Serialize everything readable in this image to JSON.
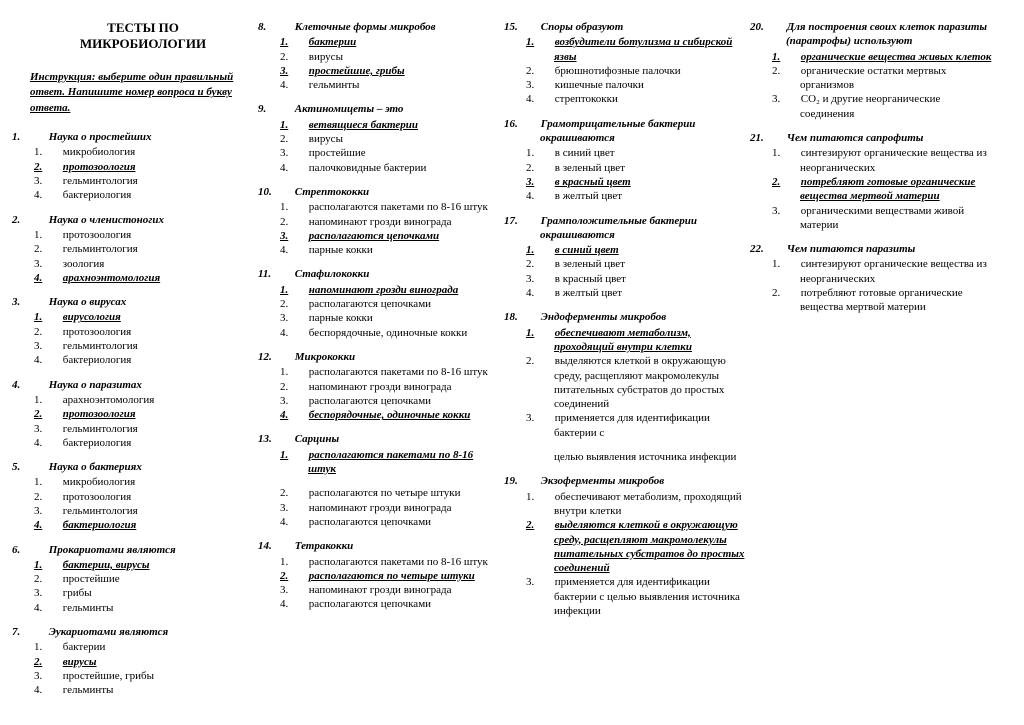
{
  "title_l1": "ТЕСТЫ ПО",
  "title_l2": "МИКРОБИОЛОГИИ",
  "instruction": "Инструкция: выберите один правильный ответ. Напишите номер вопроса и букву ответа.",
  "orphan18": [
    {
      "n": "2.",
      "t": "располагаются по четыре штуки"
    },
    {
      "n": "3.",
      "t": "напоминают грозди винограда"
    },
    {
      "n": "4.",
      "t": "располагаются цепочками"
    }
  ],
  "orphan18b": "целью выявления источника инфекции",
  "questions": [
    {
      "n": "1.",
      "q": "Наука о простейших",
      "o": [
        {
          "n": "1.",
          "t": "микробиология"
        },
        {
          "n": "2.",
          "t": "протозоология",
          "c": 1
        },
        {
          "n": "3.",
          "t": "гельминтология"
        },
        {
          "n": "4.",
          "t": "бактериология"
        }
      ]
    },
    {
      "n": "2.",
      "q": "Наука о членистоногих",
      "o": [
        {
          "n": "1.",
          "t": "протозоология"
        },
        {
          "n": "2.",
          "t": "гельминтология"
        },
        {
          "n": "3.",
          "t": "зоология"
        },
        {
          "n": "4.",
          "t": "арахноэнтомология",
          "c": 1
        }
      ]
    },
    {
      "n": "3.",
      "q": "Наука о вирусах",
      "o": [
        {
          "n": "1.",
          "t": "вирусология",
          "c": 1
        },
        {
          "n": "2.",
          "t": "протозоология"
        },
        {
          "n": "3.",
          "t": "гельминтология"
        },
        {
          "n": "4.",
          "t": "бактериология"
        }
      ]
    },
    {
      "n": "4.",
      "q": "Наука о паразитах",
      "o": [
        {
          "n": "1.",
          "t": "арахноэнтомология"
        },
        {
          "n": "2.",
          "t": "протозоология",
          "c": 1
        },
        {
          "n": "3.",
          "t": "гельминтология"
        },
        {
          "n": "4.",
          "t": "бактериология"
        }
      ]
    },
    {
      "n": "5.",
      "q": "Наука о бактериях",
      "o": [
        {
          "n": "1.",
          "t": "микробиология"
        },
        {
          "n": "2.",
          "t": "протозоология"
        },
        {
          "n": "3.",
          "t": "гельминтология"
        },
        {
          "n": "4.",
          "t": "бактериология",
          "c": 1
        }
      ]
    },
    {
      "n": "6.",
      "q": "Прокариотами являются",
      "o": [
        {
          "n": "1.",
          "t": "бактерии, вирусы",
          "c": 1
        },
        {
          "n": "2.",
          "t": "простейшие"
        },
        {
          "n": "3.",
          "t": "грибы"
        },
        {
          "n": "4.",
          "t": "гельминты"
        }
      ]
    },
    {
      "n": "7.",
      "q": "Эукариотами являются",
      "o": [
        {
          "n": "1.",
          "t": "бактерии"
        },
        {
          "n": "2.",
          "t": "вирусы",
          "c": 1
        },
        {
          "n": "3.",
          "t": "простейшие, грибы"
        },
        {
          "n": "4.",
          "t": "гельминты"
        }
      ]
    },
    {
      "n": "8.",
      "q": "Клеточные формы микробов",
      "o": [
        {
          "n": "1.",
          "t": "бактерии",
          "c": 1
        },
        {
          "n": "2.",
          "t": "вирусы"
        },
        {
          "n": "3.",
          "t": "простейшие, грибы",
          "c": 1
        },
        {
          "n": "4.",
          "t": "гельминты"
        }
      ]
    },
    {
      "n": "9.",
      "q": "Актиномицеты – это",
      "o": [
        {
          "n": "1.",
          "t": "ветвящиеся бактерии",
          "c": 1
        },
        {
          "n": "2.",
          "t": "вирусы"
        },
        {
          "n": "3.",
          "t": "простейшие"
        },
        {
          "n": "4.",
          "t": "палочковидные бактерии"
        }
      ]
    },
    {
      "n": "10.",
      "q": "Стрептококки",
      "o": [
        {
          "n": "1.",
          "t": "располагаются пакетами по 8-16 штук"
        },
        {
          "n": "2.",
          "t": "напоминают грозди винограда"
        },
        {
          "n": "3.",
          "t": "располагаются цепочками",
          "c": 1
        },
        {
          "n": "4.",
          "t": "парные кокки"
        }
      ]
    },
    {
      "n": "11.",
      "q": "Стафилококки",
      "o": [
        {
          "n": "1.",
          "t": "напоминают грозди винограда",
          "c": 1
        },
        {
          "n": "2.",
          "t": "располагаются цепочками"
        },
        {
          "n": "3.",
          "t": "парные кокки"
        },
        {
          "n": "4.",
          "t": "беспорядочные, одиночные кокки"
        }
      ]
    },
    {
      "n": "12.",
      "q": "Микрококки",
      "o": [
        {
          "n": "1.",
          "t": "располагаются пакетами по 8-16 штук"
        },
        {
          "n": "2.",
          "t": "напоминают грозди винограда"
        },
        {
          "n": "3.",
          "t": "располагаются цепочками"
        },
        {
          "n": "4.",
          "t": "беспорядочные, одиночные кокки",
          "c": 1
        }
      ]
    },
    {
      "n": "13.",
      "q": "Сарцины",
      "o": [
        {
          "n": "1.",
          "t": "располагаются пакетами по 8-16 штук",
          "c": 1
        }
      ]
    },
    {
      "n": "14.",
      "q": "Тетракокки",
      "o": [
        {
          "n": "1.",
          "t": "располагаются пакетами по 8-16 штук"
        },
        {
          "n": "2.",
          "t": "располагаются по четыре штуки",
          "c": 1
        },
        {
          "n": "3.",
          "t": "напоминают грозди винограда"
        },
        {
          "n": "4.",
          "t": "располагаются цепочками"
        }
      ]
    },
    {
      "n": "15.",
      "q": "Споры образуют",
      "o": [
        {
          "n": "1.",
          "t": "возбудители ботулизма и сибирской язвы",
          "c": 1
        },
        {
          "n": "2.",
          "t": "брюшнотифозные палочки"
        },
        {
          "n": "3.",
          "t": "кишечные палочки"
        },
        {
          "n": "4.",
          "t": "стрептококки"
        }
      ]
    },
    {
      "n": "16.",
      "q": "Грамотрицательные бактерии окрашиваются",
      "o": [
        {
          "n": "1.",
          "t": "в синий цвет"
        },
        {
          "n": "2.",
          "t": "в зеленый цвет"
        },
        {
          "n": "3.",
          "t": "в красный цвет",
          "c": 1
        },
        {
          "n": "4.",
          "t": "в желтый цвет"
        }
      ]
    },
    {
      "n": "17.",
      "q": "Грамположительные бактерии окрашиваются",
      "o": [
        {
          "n": "1.",
          "t": "в синий цвет",
          "c": 1
        },
        {
          "n": "2.",
          "t": "в зеленый цвет"
        },
        {
          "n": "3.",
          "t": "в красный цвет"
        },
        {
          "n": "4.",
          "t": "в желтый цвет"
        }
      ]
    },
    {
      "n": "18.",
      "q": "Эндоферменты микробов",
      "o": [
        {
          "n": "1.",
          "t": "обеспечивают метаболизм, проходящий внутри клетки",
          "c": 1
        },
        {
          "n": "2.",
          "t": "выделяются клеткой в окружающую среду, расщепляют макромолекулы питательных субстратов до простых соединений"
        },
        {
          "n": "3.",
          "t": "применяется для идентификации бактерии с"
        }
      ]
    },
    {
      "n": "19.",
      "q": "Экзоферменты микробов",
      "o": [
        {
          "n": "1.",
          "t": "обеспечивают метаболизм, проходящий внутри клетки"
        },
        {
          "n": "2.",
          "t": "выделяются клеткой в окружающую среду, расщепляют макромолекулы питательных субстратов до простых соединений",
          "c": 1
        },
        {
          "n": "3.",
          "t": "применяется для идентификации бактерии с целью выявления источника инфекции"
        }
      ]
    },
    {
      "n": "20.",
      "q": "Для построения своих клеток паразиты (паратрофы) используют",
      "o": [
        {
          "n": "1.",
          "t": "органические вещества живых клеток",
          "c": 1
        },
        {
          "n": "2.",
          "t": "органические остатки мертвых организмов"
        },
        {
          "n": "3.",
          "t": "СО₂ и другие неорганические соединения"
        }
      ]
    },
    {
      "n": "21.",
      "q": "Чем питаются сапрофиты",
      "o": [
        {
          "n": "1.",
          "t": "синтезируют органические вещества из неорганических"
        },
        {
          "n": "2.",
          "t": "потребляют готовые органические вещества мертвой материи",
          "c": 1
        },
        {
          "n": "3.",
          "t": "органическими веществами живой материи"
        }
      ]
    },
    {
      "n": "22.",
      "q": "Чем питаются паразиты",
      "o": [
        {
          "n": "1.",
          "t": "синтезируют органические вещества из неорганических"
        },
        {
          "n": "2.",
          "t": "потребляют готовые органические вещества мертвой материи"
        }
      ]
    }
  ]
}
